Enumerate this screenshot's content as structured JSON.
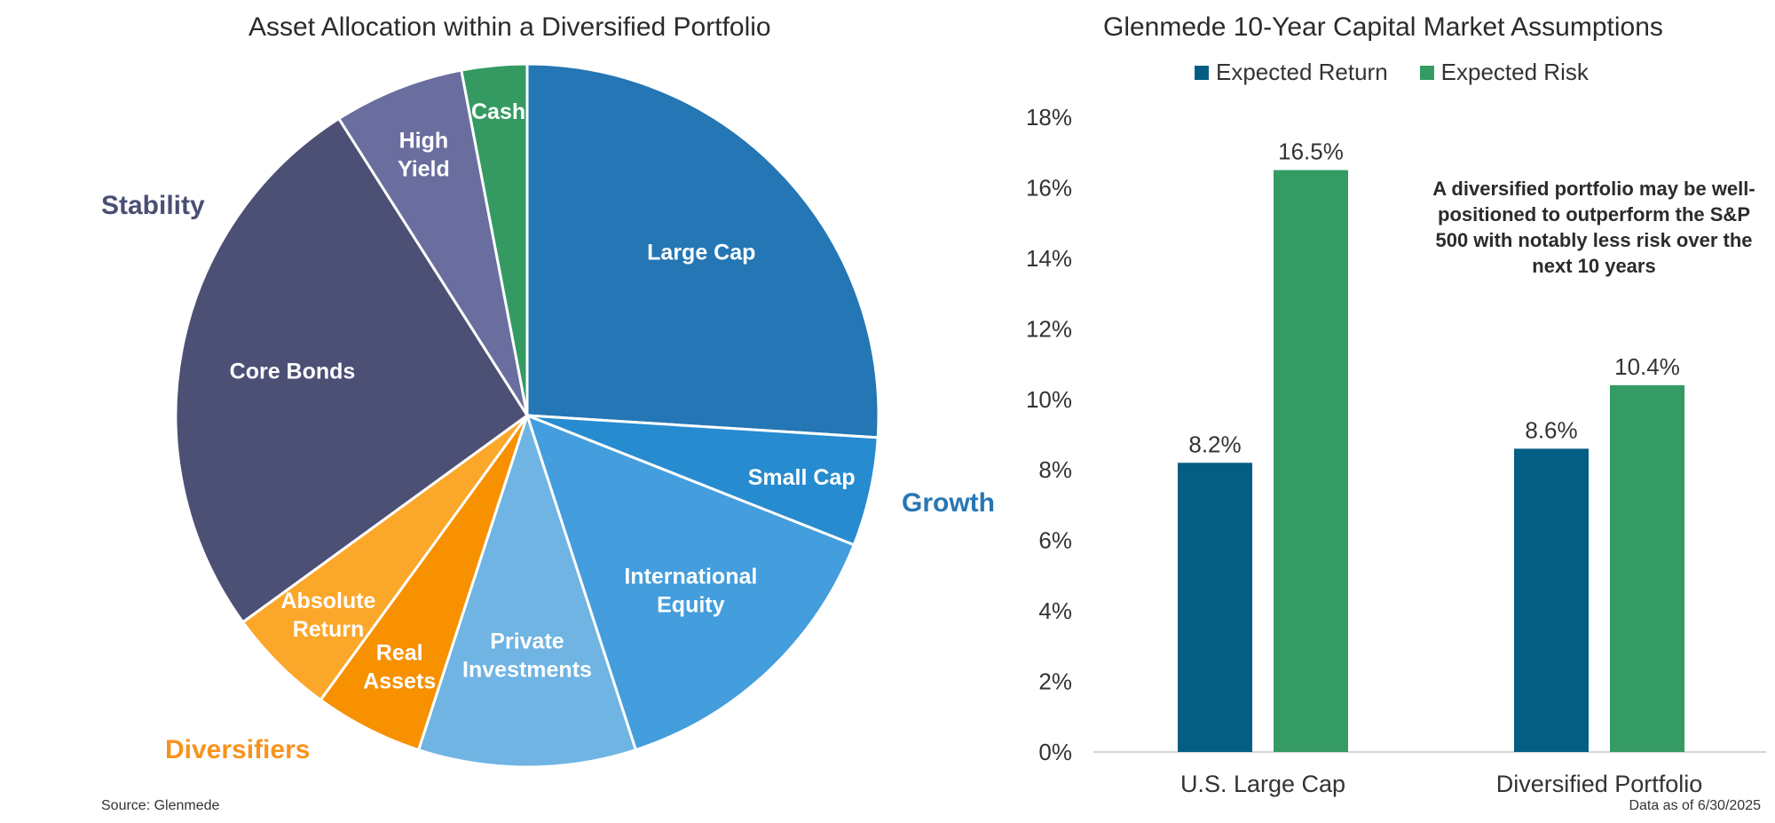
{
  "chart_data": [
    {
      "type": "pie",
      "title": "Asset Allocation within a Diversified Portfolio",
      "slices": [
        {
          "name": "Large Cap",
          "lines": [
            "Large Cap"
          ],
          "value": 26,
          "color": "#2476b4",
          "group": "Growth"
        },
        {
          "name": "Small Cap",
          "lines": [
            "Small Cap"
          ],
          "value": 5,
          "color": "#278bd0",
          "group": "Growth"
        },
        {
          "name": "International Equity",
          "lines": [
            "International",
            "Equity"
          ],
          "value": 14,
          "color": "#449ddc",
          "group": "Growth"
        },
        {
          "name": "Private Investments",
          "lines": [
            "Private",
            "Investments"
          ],
          "value": 10,
          "color": "#6fb4e3",
          "group": "Growth"
        },
        {
          "name": "Real Assets",
          "lines": [
            "Real",
            "Assets"
          ],
          "value": 5,
          "color": "#f79100",
          "group": "Diversifiers"
        },
        {
          "name": "Absolute Return",
          "lines": [
            "Absolute",
            "Return"
          ],
          "value": 5,
          "color": "#fba72a",
          "group": "Diversifiers"
        },
        {
          "name": "Core Bonds",
          "lines": [
            "Core Bonds"
          ],
          "value": 26,
          "color": "#4c5075",
          "group": "Stability"
        },
        {
          "name": "High Yield",
          "lines": [
            "High",
            "Yield"
          ],
          "value": 6,
          "color": "#6a6e9e",
          "group": "Stability"
        },
        {
          "name": "Cash",
          "lines": [
            "Cash"
          ],
          "value": 3,
          "color": "#349a62",
          "group": "Stability"
        }
      ],
      "group_labels": {
        "stability": "Stability",
        "growth": "Growth",
        "diversifiers": "Diversifiers"
      },
      "group_colors": {
        "stability": "#4a4f74",
        "growth": "#2876b4",
        "diversifiers": "#f7931d"
      }
    },
    {
      "type": "bar",
      "title": "Glenmede 10-Year Capital Market Assumptions",
      "categories": [
        "U.S. Large Cap",
        "Diversified Portfolio"
      ],
      "series": [
        {
          "name": "Expected Return",
          "values": [
            8.2,
            8.6
          ],
          "labels": [
            "8.2%",
            "8.6%"
          ],
          "color": "#045e84"
        },
        {
          "name": "Expected Risk",
          "values": [
            16.5,
            10.4
          ],
          "labels": [
            "16.5%",
            "10.4%"
          ],
          "color": "#339b63"
        }
      ],
      "ylim": [
        0,
        18
      ],
      "yticks": [
        0,
        2,
        4,
        6,
        8,
        10,
        12,
        14,
        16,
        18
      ],
      "ytick_labels": [
        "0%",
        "2%",
        "4%",
        "6%",
        "8%",
        "10%",
        "12%",
        "14%",
        "16%",
        "18%"
      ],
      "grid": false,
      "legend_position": "top-center",
      "annotation": "A diversified portfolio may be well-positioned to outperform the S&P 500 with notably less risk over the next 10 years"
    }
  ],
  "footer": {
    "source": "Source: Glenmede",
    "data_as_of": "Data as of 6/30/2025"
  }
}
